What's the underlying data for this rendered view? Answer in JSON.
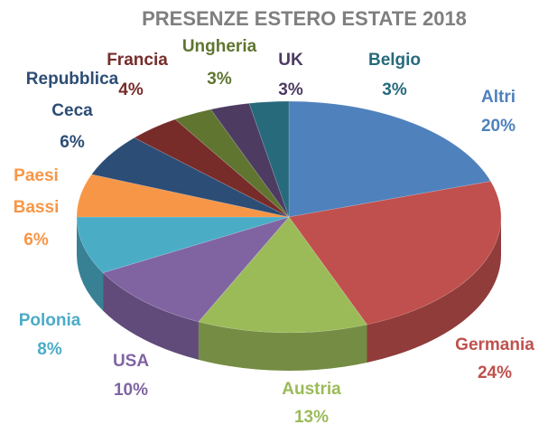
{
  "chart_data": {
    "type": "pie",
    "title": "PRESENZE ESTERO ESTATE 2018",
    "categories": [
      "Altri",
      "Germania",
      "Austria",
      "USA",
      "Polonia",
      "Paesi Bassi",
      "Repubblica Ceca",
      "Francia",
      "Ungheria",
      "UK",
      "Belgio"
    ],
    "values": [
      20,
      24,
      13,
      10,
      8,
      6,
      6,
      4,
      3,
      3,
      3
    ],
    "value_labels": [
      "20%",
      "24%",
      "13%",
      "10%",
      "8%",
      "6%",
      "6%",
      "4%",
      "3%",
      "3%",
      "3%"
    ],
    "colors": [
      "#4f81bd",
      "#c0504d",
      "#9bbb59",
      "#8064a2",
      "#4bacc6",
      "#f79646",
      "#2c4d75",
      "#772c2a",
      "#5f7530",
      "#4d3b62",
      "#276a7c"
    ]
  }
}
